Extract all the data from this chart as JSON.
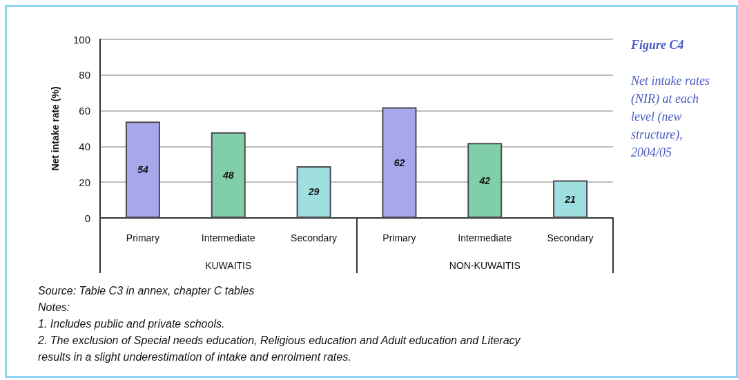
{
  "chart_data": {
    "type": "bar",
    "title": "Figure C4",
    "subtitle": "Net intake rates (NIR) at each level (new structure), 2004/05",
    "ylabel": "Net intake rate (%)",
    "categories": [
      "KUWAITIS",
      "NON-KUWAITIS"
    ],
    "series": [
      {
        "name": "Primary",
        "color": "#a9a7ec",
        "values": [
          54,
          62
        ]
      },
      {
        "name": "Intermediate",
        "color": "#80cfa8",
        "values": [
          48,
          42
        ]
      },
      {
        "name": "Secondary",
        "color": "#a0dfdf",
        "values": [
          29,
          21
        ]
      }
    ],
    "ylim": [
      0,
      100
    ],
    "yticks": [
      0,
      20,
      40,
      60,
      80,
      100
    ],
    "grid": "y",
    "data_labels": true,
    "annotations": [
      "Source: Table C3  in annex, chapter C tables",
      "Notes:",
      "1. Includes public and private schools.",
      "2. The exclusion of Special needs education, Religious education and Adult education and Literacy results in a slight underestimation of intake and enrolment rates."
    ]
  }
}
